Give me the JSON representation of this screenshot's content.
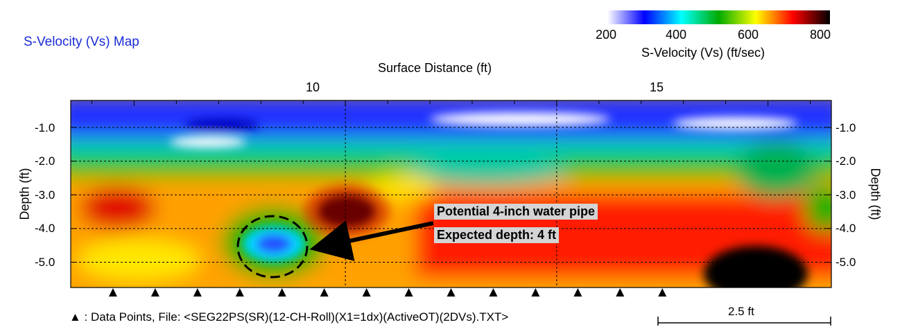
{
  "chart_data": {
    "type": "heatmap",
    "title": "S-Velocity (Vs) Map",
    "xlabel": "Surface Distance (ft)",
    "ylabel": "Depth (ft)",
    "x_ticks": [
      10,
      15
    ],
    "y_ticks": [
      -1.0,
      -2.0,
      -3.0,
      -4.0,
      -5.0
    ],
    "y_tick_labels": [
      "-1.0",
      "-2.0",
      "-3.0",
      "-4.0",
      "-5.0"
    ],
    "xlim": [
      3.5,
      21.5
    ],
    "ylim": [
      -5.75,
      -0.2
    ],
    "colorbar": {
      "title": "S-Velocity (Vs) (ft/sec)",
      "ticks": [
        200,
        400,
        600,
        800
      ],
      "range": [
        200,
        820
      ],
      "colors": [
        "#ffffff",
        "#0000ff",
        "#00ffff",
        "#00aa00",
        "#ffff00",
        "#ff0000",
        "#000000"
      ]
    },
    "data_points_x": [
      4.5,
      5.5,
      6.5,
      7.5,
      8.5,
      9.5,
      10.5,
      11.5,
      12.5,
      13.5,
      14.5,
      15.5,
      16.5,
      17.5
    ],
    "annotation": {
      "line1": "Potential 4-inch water pipe",
      "line2": "Expected depth: 4 ft",
      "target": {
        "x": 8.9,
        "depth": -4.5
      }
    },
    "scale_bar_label": "2.5 ft",
    "footer": "▲ : Data Points,  File: <SEG22PS(SR)(12-CH-Roll)(X1=1dx)(ActiveOT)(2DVs).TXT>"
  }
}
